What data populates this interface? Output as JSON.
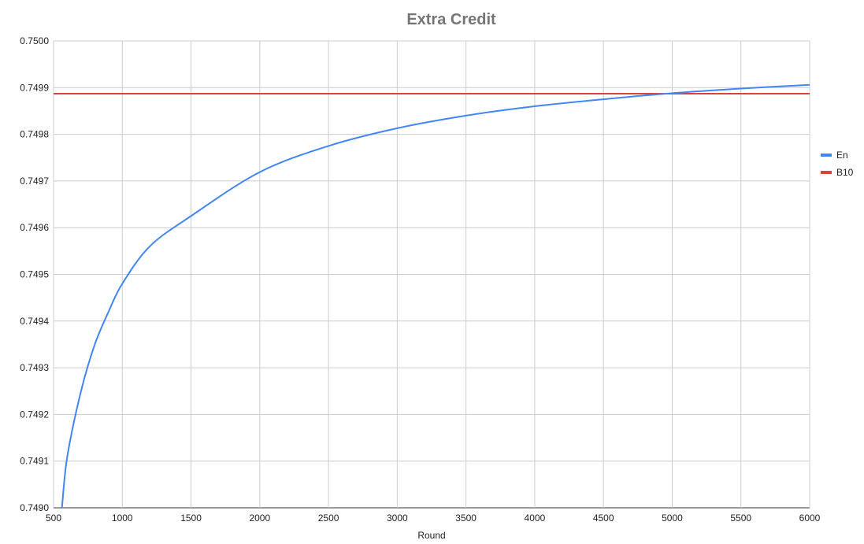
{
  "chart_data": {
    "type": "line",
    "title": "Extra Credit",
    "xlabel": "Round",
    "ylabel": "",
    "xlim": [
      500,
      6000
    ],
    "ylim": [
      0.749,
      0.75
    ],
    "x_ticks": [
      "500",
      "1000",
      "1500",
      "2000",
      "2500",
      "3000",
      "3500",
      "4000",
      "4500",
      "5000",
      "5500",
      "6000"
    ],
    "y_ticks": [
      "0.7490",
      "0.7491",
      "0.7492",
      "0.7493",
      "0.7494",
      "0.7495",
      "0.7496",
      "0.7497",
      "0.7498",
      "0.7499",
      "0.7500"
    ],
    "grid": true,
    "legend_position": "right",
    "series": [
      {
        "name": "En",
        "color": "#4285f4",
        "x": [
          561,
          600,
          700,
          800,
          900,
          1000,
          1200,
          1500,
          2000,
          2500,
          3000,
          3500,
          4000,
          4500,
          5000,
          5500,
          6000
        ],
        "y": [
          0.749,
          0.74911,
          0.74925,
          0.74935,
          0.74942,
          0.74948,
          0.74956,
          0.749625,
          0.749719,
          0.749775,
          0.749813,
          0.74984,
          0.74986,
          0.749875,
          0.749888,
          0.749898,
          0.749906
        ]
      },
      {
        "name": "B10",
        "color": "#db4437",
        "x": [
          500,
          6000
        ],
        "y": [
          0.749887,
          0.749887
        ]
      }
    ]
  }
}
